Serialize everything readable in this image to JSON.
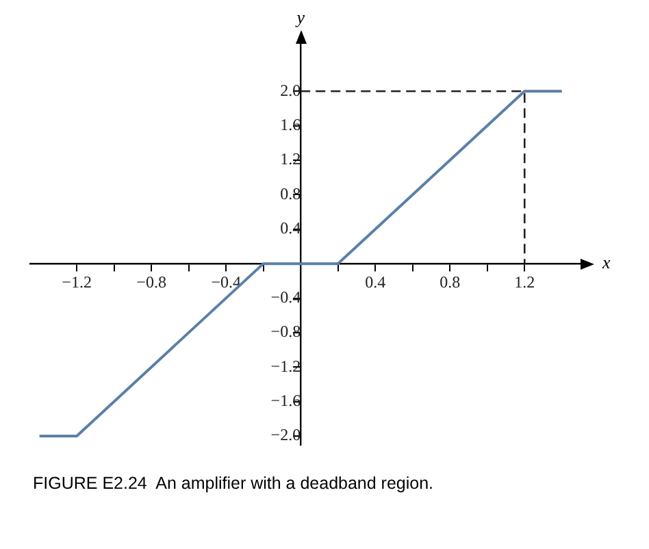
{
  "chart_data": {
    "type": "line",
    "xlabel": "x",
    "ylabel": "y",
    "annotations": [
      "FIGURE E2.24  An amplifier with a deadband region."
    ],
    "xlim": [
      -1.45,
      1.5
    ],
    "ylim": [
      -2.1,
      2.55
    ],
    "xticks": [
      {
        "value": -1.2,
        "label": "−1.2"
      },
      {
        "value": -1.0,
        "label": null
      },
      {
        "value": -0.8,
        "label": "−0.8"
      },
      {
        "value": -0.6,
        "label": null
      },
      {
        "value": -0.4,
        "label": "−0.4"
      },
      {
        "value": -0.2,
        "label": null
      },
      {
        "value": 0.2,
        "label": null
      },
      {
        "value": 0.4,
        "label": "0.4"
      },
      {
        "value": 0.6,
        "label": null
      },
      {
        "value": 0.8,
        "label": "0.8"
      },
      {
        "value": 1.0,
        "label": null
      },
      {
        "value": 1.2,
        "label": "1.2"
      }
    ],
    "yticks": [
      {
        "value": -2.0,
        "label": "−2.0"
      },
      {
        "value": -1.6,
        "label": "−1.6"
      },
      {
        "value": -1.2,
        "label": "−1.2"
      },
      {
        "value": -0.8,
        "label": "−0.8"
      },
      {
        "value": -0.4,
        "label": "−0.4"
      },
      {
        "value": 0.4,
        "label": "0.4"
      },
      {
        "value": 0.8,
        "label": "0.8"
      },
      {
        "value": 1.2,
        "label": "1.2"
      },
      {
        "value": 1.6,
        "label": "1.6"
      },
      {
        "value": 2.0,
        "label": "2.0"
      }
    ],
    "grid": false,
    "legend": false,
    "marker": "none",
    "series": [
      {
        "color": "#5b7fa8",
        "line_style": "solid",
        "x": [
          -1.4,
          -1.2,
          -0.2,
          0.2,
          1.2,
          1.4
        ],
        "values": [
          -2,
          -2,
          0,
          0,
          2,
          2
        ]
      },
      {
        "color": "#222222",
        "line_style": "dashed",
        "x": [
          0,
          1.2,
          1.2
        ],
        "values": [
          2,
          2,
          0
        ]
      }
    ]
  }
}
